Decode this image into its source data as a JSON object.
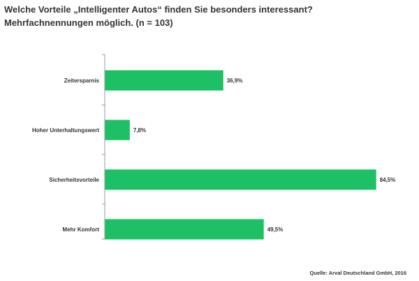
{
  "header": {
    "title_line1": "Welche Vorteile „Intelligenter Autos“ finden Sie besonders interessant?",
    "title_line2": "Mehrfachnennungen möglich. (n = 103)"
  },
  "source": "Quelle: Arval Deutschland GmbH, 2016",
  "chart_data": {
    "type": "bar",
    "orientation": "horizontal",
    "categories": [
      "Zeitersparnis",
      "Hoher Unterhaltungswert",
      "Sicherheitsvorteile",
      "Mehr Komfort"
    ],
    "values": [
      36.9,
      7.8,
      84.5,
      49.5
    ],
    "value_labels": [
      "36,9%",
      "7,8%",
      "84,5%",
      "49,5%"
    ],
    "unit": "%",
    "xlim": [
      0,
      100
    ],
    "grid": false,
    "legend": "none",
    "bar_color": "#1ec065"
  }
}
